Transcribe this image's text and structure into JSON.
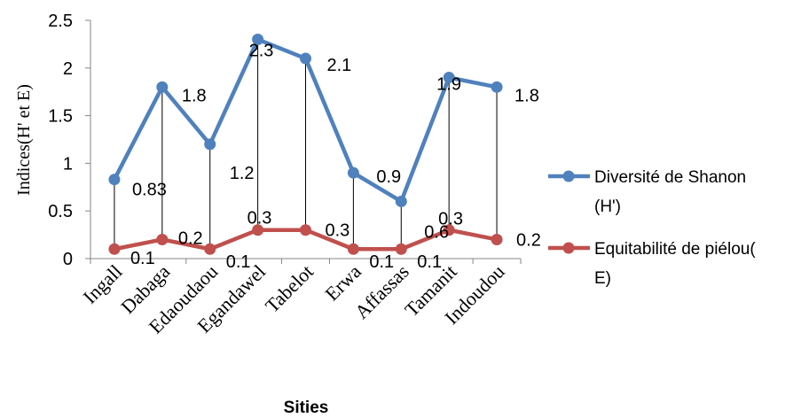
{
  "chart_data": {
    "type": "line",
    "categories": [
      "Ingall",
      "Dabaga",
      "Edaoudaou",
      "Egandawel",
      "Tabelot",
      "Erwa",
      "Affassas",
      "Tamanit",
      "Indoudou"
    ],
    "series": [
      {
        "name": "Diversité de Shanon (H')",
        "legend_lines": [
          "Diversité de Shanon",
          "(H')"
        ],
        "color": "#4f81bd",
        "values": [
          0.83,
          1.8,
          1.2,
          2.3,
          2.1,
          0.9,
          0.6,
          1.9,
          1.8
        ],
        "labels": [
          "0.83",
          "1.8",
          "1.2",
          "2.3",
          "2.1",
          "0.9",
          "0.6",
          "1.9",
          "1.8"
        ]
      },
      {
        "name": "Equitabilité de piélou( E)",
        "legend_lines": [
          "Equitabilité de piélou(",
          "E)"
        ],
        "color": "#c0504d",
        "values": [
          0.1,
          0.2,
          0.1,
          0.3,
          0.3,
          0.1,
          0.1,
          0.3,
          0.2
        ],
        "labels": [
          "0.1",
          "0.2",
          "0.1",
          "0.3",
          "0.3",
          "0.1",
          "0.1",
          "0.3",
          "0.2"
        ]
      }
    ],
    "ylim": [
      0,
      2.5
    ],
    "yticks": [
      "0",
      "0.5",
      "1",
      "1.5",
      "2",
      "2.5"
    ],
    "ytick_values": [
      0,
      0.5,
      1,
      1.5,
      2,
      2.5
    ],
    "ylabel": "Indices(H' et E)",
    "xlabel": "Sities",
    "drop_lines": true,
    "grid": false,
    "legend_position": "right"
  }
}
